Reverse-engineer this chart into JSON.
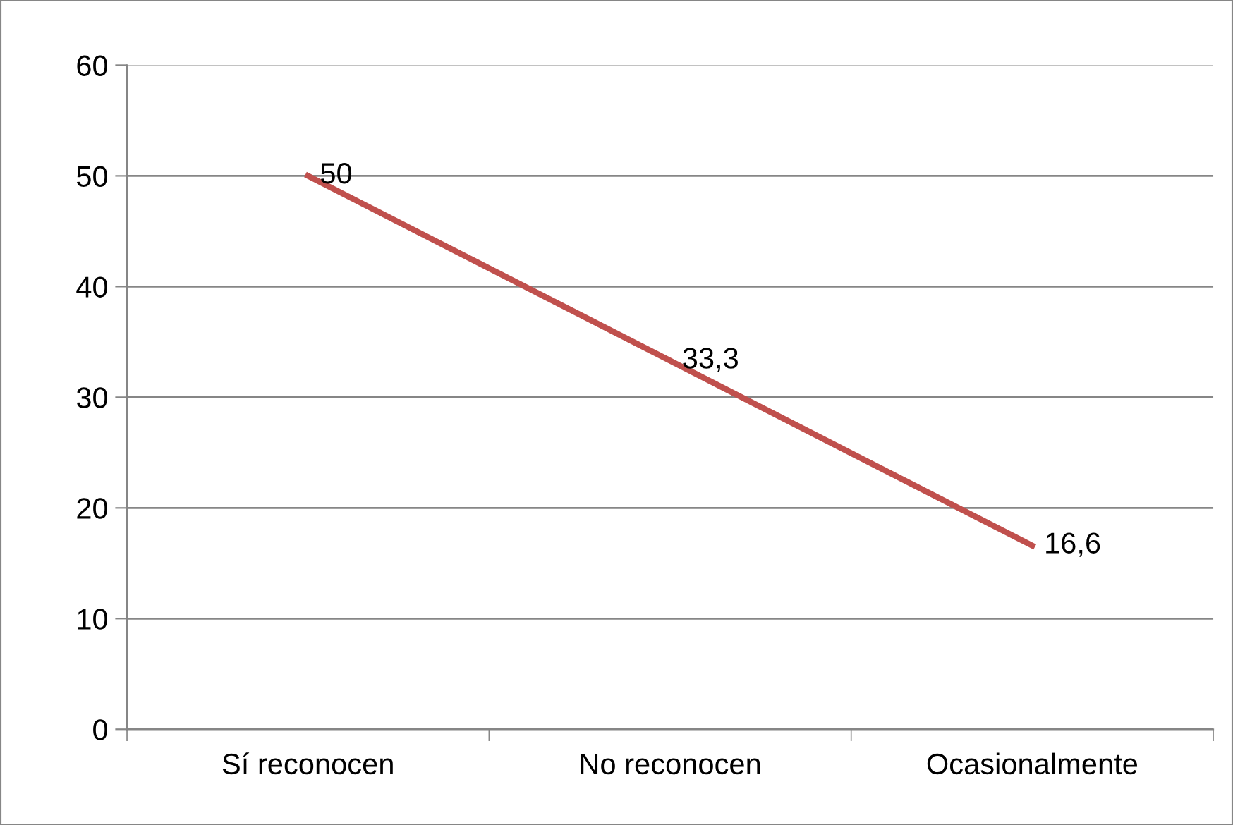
{
  "chart_data": {
    "type": "line",
    "categories": [
      "Sí reconocen",
      "No reconocen",
      "Ocasionalmente"
    ],
    "series": [
      {
        "color": "#c0504d",
        "values": [
          50,
          33.3,
          16.6
        ],
        "value_labels": [
          "50",
          "33,3",
          "16,6"
        ]
      }
    ],
    "ylim": [
      0,
      60
    ],
    "yticks": [
      0,
      10,
      20,
      30,
      40,
      50,
      60
    ],
    "grid": "y",
    "marker": "none",
    "line_style": "solid"
  }
}
